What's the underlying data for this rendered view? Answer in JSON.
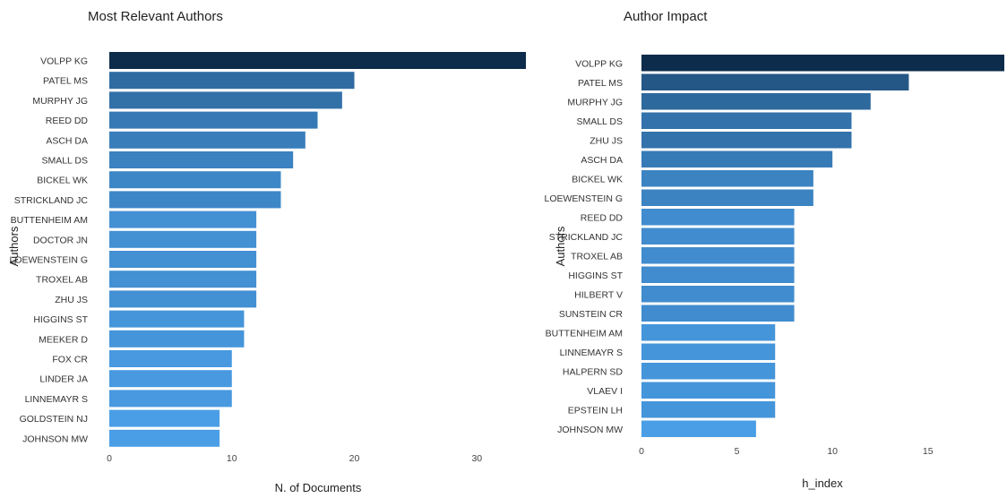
{
  "chart_data": [
    {
      "type": "bar",
      "orientation": "horizontal",
      "title": "Most Relevant Authors",
      "xlabel": "N. of Documents",
      "ylabel": "Authors",
      "xticks": [
        "0",
        "10",
        "20",
        "30"
      ],
      "xlim": [
        0,
        34
      ],
      "grid": false,
      "legend": "none",
      "color_dark": "#0d2b4a",
      "color_light": "#4a9ee6",
      "categories": [
        "VOLPP KG",
        "PATEL MS",
        "MURPHY JG",
        "REED DD",
        "ASCH DA",
        "SMALL DS",
        "BICKEL WK",
        "STRICKLAND JC",
        "BUTTENHEIM AM",
        "DOCTOR JN",
        "LOEWENSTEIN G",
        "TROXEL AB",
        "ZHU JS",
        "HIGGINS ST",
        "MEEKER D",
        "FOX CR",
        "LINDER JA",
        "LINNEMAYR S",
        "GOLDSTEIN NJ",
        "JOHNSON MW"
      ],
      "values": [
        34,
        20,
        19,
        17,
        16,
        15,
        14,
        14,
        12,
        12,
        12,
        12,
        12,
        11,
        11,
        10,
        10,
        10,
        9,
        9
      ]
    },
    {
      "type": "bar",
      "orientation": "horizontal",
      "title": "Author Impact",
      "xlabel": "h_index",
      "ylabel": "Authors",
      "xticks": [
        "0",
        "5",
        "10",
        "15"
      ],
      "xlim": [
        0,
        19
      ],
      "grid": false,
      "legend": "none",
      "color_dark": "#0d2b4a",
      "color_light": "#4a9ee6",
      "categories": [
        "VOLPP KG",
        "PATEL MS",
        "MURPHY JG",
        "SMALL DS",
        "ZHU JS",
        "ASCH DA",
        "BICKEL WK",
        "LOEWENSTEIN G",
        "REED DD",
        "STRICKLAND JC",
        "TROXEL AB",
        "HIGGINS ST",
        "HILBERT V",
        "SUNSTEIN CR",
        "BUTTENHEIM AM",
        "LINNEMAYR S",
        "HALPERN SD",
        "VLAEV I",
        "EPSTEIN LH",
        "JOHNSON MW"
      ],
      "values": [
        19,
        14,
        12,
        11,
        11,
        10,
        9,
        9,
        8,
        8,
        8,
        8,
        8,
        8,
        7,
        7,
        7,
        7,
        7,
        6
      ]
    }
  ]
}
